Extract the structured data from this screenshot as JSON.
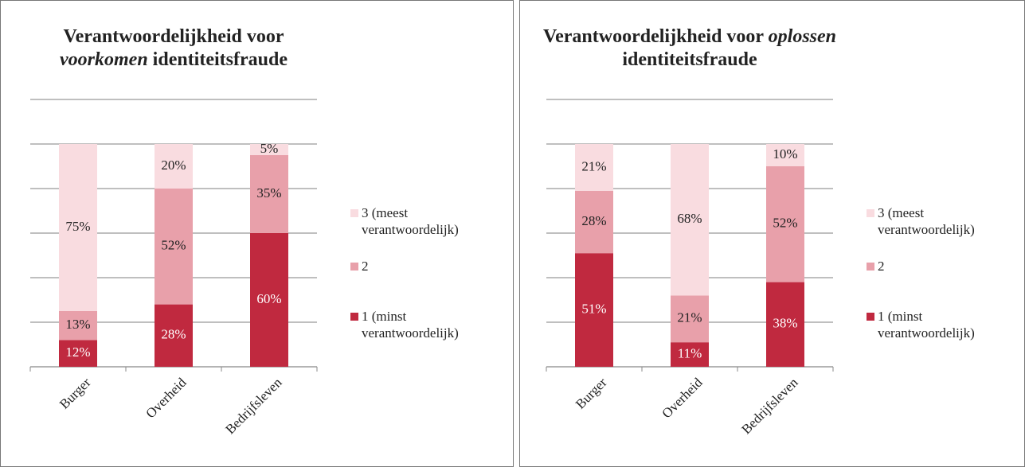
{
  "chart_data": [
    {
      "type": "stacked_bar",
      "title_lines": [
        [
          {
            "text": "Verantwoordelijkheid voor",
            "italic": false
          }
        ],
        [
          {
            "text": "voorkomen",
            "italic": true
          },
          {
            "text": " identiteitsfraude",
            "italic": false
          }
        ]
      ],
      "categories": [
        "Burger",
        "Overheid",
        "Bedrijfsleven"
      ],
      "series": [
        {
          "name": "1 (minst verantwoordelijk)",
          "color": "#c0293f",
          "values": [
            12,
            28,
            60
          ],
          "value_labels": [
            "12%",
            "28%",
            "60%"
          ]
        },
        {
          "name": "2",
          "color": "#e8a0aa",
          "values": [
            13,
            52,
            35
          ],
          "value_labels": [
            "13%",
            "52%",
            "35%"
          ]
        },
        {
          "name": "3 (meest verantwoordelijk)",
          "color": "#f9dce0",
          "values": [
            75,
            20,
            5
          ],
          "value_labels": [
            "75%",
            "20%",
            "5%"
          ]
        }
      ],
      "ylim": [
        0,
        120
      ],
      "yticks": [
        0,
        20,
        40,
        60,
        80,
        100,
        120
      ],
      "grid": true,
      "legend": "right"
    },
    {
      "type": "stacked_bar",
      "title_lines": [
        [
          {
            "text": "Verantwoordelijkheid voor ",
            "italic": false
          },
          {
            "text": "oplossen",
            "italic": true
          }
        ],
        [
          {
            "text": "identiteitsfraude",
            "italic": false
          }
        ]
      ],
      "categories": [
        "Burger",
        "Overheid",
        "Bedrijfsleven"
      ],
      "series": [
        {
          "name": "1 (minst verantwoordelijk)",
          "color": "#c0293f",
          "values": [
            51,
            11,
            38
          ],
          "value_labels": [
            "51%",
            "11%",
            "38%"
          ]
        },
        {
          "name": "2",
          "color": "#e8a0aa",
          "values": [
            28,
            21,
            52
          ],
          "value_labels": [
            "28%",
            "21%",
            "52%"
          ]
        },
        {
          "name": "3 (meest verantwoordelijk)",
          "color": "#f9dce0",
          "values": [
            21,
            68,
            10
          ],
          "value_labels": [
            "21%",
            "68%",
            "10%"
          ]
        }
      ],
      "ylim": [
        0,
        120
      ],
      "yticks": [
        0,
        20,
        40,
        60,
        80,
        100,
        120
      ],
      "grid": true,
      "legend": "right"
    }
  ]
}
